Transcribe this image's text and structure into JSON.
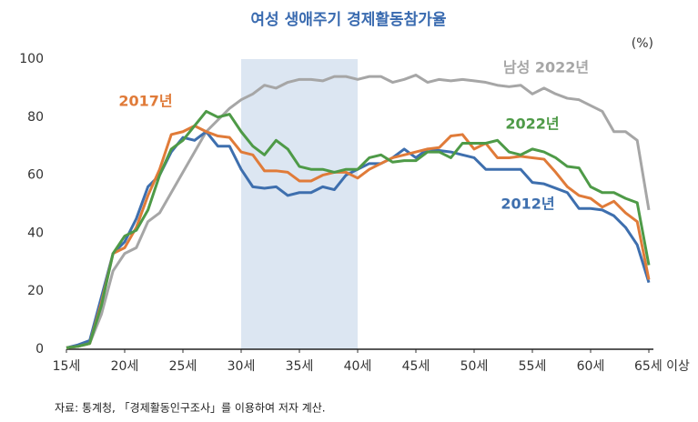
{
  "chart_data": {
    "type": "line",
    "title": "여성 생애주기 경제활동참가율",
    "unit_label": "(%)",
    "note": "자료: 통계청, 「경제활동인구조사」를 이용하여 저자 계산.",
    "x": [
      15,
      16,
      17,
      18,
      19,
      20,
      21,
      22,
      23,
      24,
      25,
      26,
      27,
      28,
      29,
      30,
      31,
      32,
      33,
      34,
      35,
      36,
      37,
      38,
      39,
      40,
      41,
      42,
      43,
      44,
      45,
      46,
      47,
      48,
      49,
      50,
      51,
      52,
      53,
      54,
      55,
      56,
      57,
      58,
      59,
      60,
      61,
      62,
      63,
      64,
      65
    ],
    "xlim": [
      15,
      65
    ],
    "xticks": [
      {
        "value": 15,
        "label": "15세"
      },
      {
        "value": 20,
        "label": "20세"
      },
      {
        "value": 25,
        "label": "25세"
      },
      {
        "value": 30,
        "label": "30세"
      },
      {
        "value": 35,
        "label": "35세"
      },
      {
        "value": 40,
        "label": "40세"
      },
      {
        "value": 45,
        "label": "45세"
      },
      {
        "value": 50,
        "label": "50세"
      },
      {
        "value": 55,
        "label": "55세"
      },
      {
        "value": 60,
        "label": "60세"
      },
      {
        "value": 65,
        "label": "65세 이상"
      }
    ],
    "ylim": [
      0,
      100
    ],
    "yticks": [
      0,
      20,
      40,
      60,
      80,
      100
    ],
    "highlight_xrange": [
      30,
      40
    ],
    "highlight_color": "#dce6f2",
    "series": [
      {
        "name": "남성 2022년",
        "color": "#a6a6a6",
        "values": [
          0.5,
          1,
          2,
          12,
          27,
          33,
          35,
          44,
          47,
          54,
          61,
          68,
          75,
          79,
          83,
          86,
          88,
          91,
          90,
          92,
          93,
          93,
          92.5,
          94,
          94,
          93,
          94,
          94,
          92,
          93,
          94.5,
          92,
          93,
          92.5,
          93,
          92.5,
          92,
          91,
          90.5,
          91,
          88,
          90,
          88,
          86.5,
          86,
          84,
          82,
          75,
          75,
          72,
          48
        ]
      },
      {
        "name": "2012년",
        "color": "#3e6fae",
        "values": [
          0.5,
          1.5,
          3,
          18,
          33,
          37,
          45,
          56,
          60,
          68,
          73,
          72,
          75,
          70,
          70,
          62,
          56,
          55.5,
          56,
          53,
          54,
          54,
          56,
          55,
          60,
          62,
          64,
          64,
          66,
          69,
          66,
          69,
          68.5,
          68,
          67,
          66,
          62,
          62,
          62,
          62,
          57.5,
          57,
          55.5,
          54,
          48.5,
          48.5,
          48,
          46,
          42,
          36,
          23
        ]
      },
      {
        "name": "2017년",
        "color": "#e07b39",
        "values": [
          0.5,
          1,
          2,
          16,
          33,
          35,
          42,
          53,
          62,
          74,
          75,
          77,
          75,
          73.5,
          73,
          68,
          67,
          61.5,
          61.5,
          61,
          58,
          58,
          60,
          61,
          61,
          59,
          62,
          64,
          66,
          67,
          68,
          69,
          69.5,
          73.5,
          74,
          69,
          71,
          66,
          66,
          66.5,
          66,
          65.5,
          61,
          56,
          53,
          52,
          49,
          51,
          47,
          44,
          24
        ]
      },
      {
        "name": "2022년",
        "color": "#4e9a47",
        "values": [
          0.5,
          1,
          2,
          15,
          33,
          39,
          41,
          48,
          60,
          69,
          72,
          77,
          82,
          80,
          81,
          75,
          70,
          67,
          72,
          69,
          63,
          62,
          62,
          61,
          62,
          62,
          66,
          67,
          64.5,
          65,
          65,
          68,
          68,
          66,
          71,
          71,
          71,
          72,
          68,
          67,
          69,
          68,
          66,
          63,
          62.5,
          56,
          54,
          54,
          52,
          50.5,
          29
        ]
      }
    ]
  }
}
